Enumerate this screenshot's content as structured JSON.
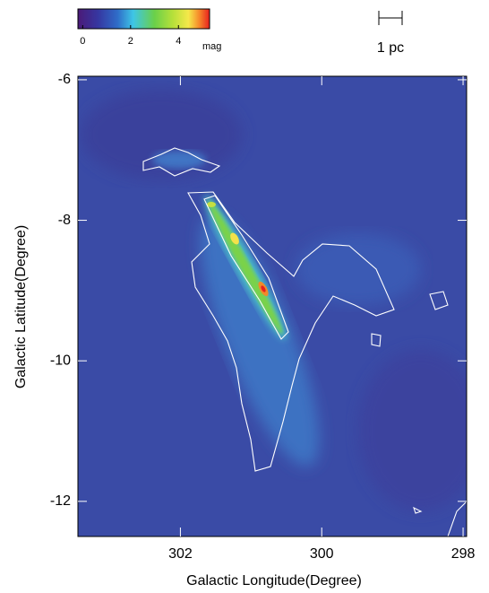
{
  "chart_data": {
    "type": "image",
    "xlabel": "Galactic Longitude(Degree)",
    "ylabel": "Galactic Latitude(Degree)",
    "xlim": [
      303.45,
      297.95
    ],
    "xticks": [
      302,
      300,
      298
    ],
    "ylim": [
      -12.5,
      -5.95
    ],
    "yticks": [
      -6,
      -8,
      -10,
      -12
    ],
    "colorbar": {
      "label": "mag",
      "lim": [
        -0.2,
        5.3
      ],
      "ticks": [
        0,
        2,
        4
      ]
    },
    "scale_bar": {
      "label": "1 pc"
    }
  }
}
